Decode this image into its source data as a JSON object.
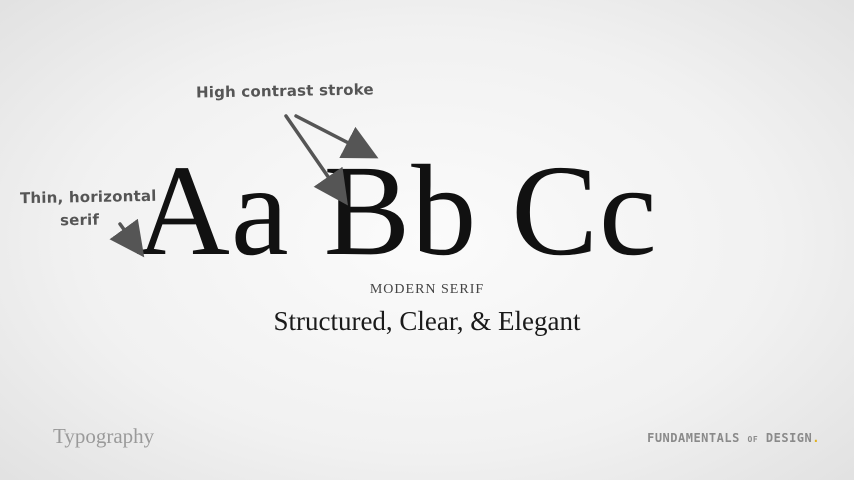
{
  "annotations": {
    "high_contrast": "High contrast stroke",
    "serif_line1": "Thin, horizontal",
    "serif_line2": "serif"
  },
  "specimen": {
    "pair1": "Aa",
    "pair2": "Bb",
    "pair3": "Cc"
  },
  "subtitle": "MODERN SERIF",
  "tagline": "Structured, Clear, & Elegant",
  "footer": {
    "section": "Typography",
    "brand_main": "FUNDAMENTALS",
    "brand_of": "OF",
    "brand_end": "DESIGN",
    "brand_dot": "."
  },
  "colors": {
    "arrow": "#555555",
    "text": "#111111",
    "accent_dot": "#e0b020"
  }
}
